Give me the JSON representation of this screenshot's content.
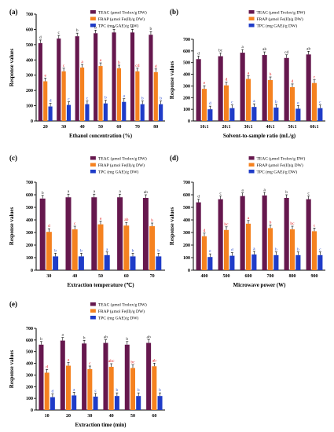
{
  "legend": [
    "TEAC (μmol Trolox/g DW)",
    "FRAP (μmol Fe(II)/g DW)",
    "TPC (mg GAE)/g DW)"
  ],
  "colors": {
    "teac": "#66184e",
    "frap": "#f58220",
    "tpc": "#1f3cc8",
    "letter_black": "#222222",
    "letter_red": "#e02020",
    "letter_blue": "#2a4bd0"
  },
  "chart_data": [
    {
      "panel": "(a)",
      "type": "bar",
      "xlabel": "Ethanol concentration (%)",
      "ylabel": "Response values",
      "ylim": [
        0,
        700
      ],
      "yticks": [
        0,
        100,
        200,
        300,
        400,
        500,
        600,
        700
      ],
      "categories": [
        "20",
        "30",
        "40",
        "50",
        "60",
        "70",
        "80"
      ],
      "series": [
        {
          "name": "TEAC (μmol Trolox/g DW)",
          "values": [
            510,
            540,
            555,
            575,
            580,
            580,
            565
          ],
          "letters": [
            "d",
            "c",
            "b",
            "b",
            "a",
            "a",
            "b"
          ]
        },
        {
          "name": "FRAP (μmol Fe(II)/g DW)",
          "values": [
            260,
            325,
            350,
            360,
            345,
            325,
            320
          ],
          "letters": [
            "e",
            "c",
            "a",
            "a",
            "b",
            "cd",
            "d"
          ]
        },
        {
          "name": "TPC (mg GAE)/g DW)",
          "values": [
            95,
            105,
            110,
            115,
            125,
            110,
            110
          ],
          "letters": [
            "d",
            "c",
            "c",
            "b",
            "a",
            "b",
            "b"
          ]
        }
      ]
    },
    {
      "panel": "(b)",
      "type": "bar",
      "xlabel": "Solvent-to-sample ratio (mL/g)",
      "ylabel": "Response values",
      "ylim": [
        0,
        700
      ],
      "yticks": [
        0,
        100,
        200,
        300,
        400,
        500,
        600,
        700
      ],
      "categories": [
        "10:1",
        "20:1",
        "30:1",
        "40:1",
        "50:1",
        "60:1"
      ],
      "series": [
        {
          "name": "TEAC (μmol Trolox/g DW)",
          "values": [
            530,
            555,
            585,
            565,
            540,
            570
          ],
          "letters": [
            "d",
            "bc",
            "a",
            "ab",
            "cd",
            "ab"
          ]
        },
        {
          "name": "FRAP (μmol Fe(II)/g DW)",
          "values": [
            275,
            305,
            360,
            350,
            290,
            325
          ],
          "letters": [
            "e",
            "d",
            "a",
            "b",
            "d",
            "c"
          ]
        },
        {
          "name": "TPC (mg GAE)/g DW)",
          "values": [
            100,
            110,
            120,
            115,
            105,
            110
          ],
          "letters": [
            "d",
            "c",
            "a",
            "b",
            "e",
            "c"
          ]
        }
      ]
    },
    {
      "panel": "(c)",
      "type": "bar",
      "xlabel": "Extraction temperature (℃)",
      "ylabel": "Response values",
      "ylim": [
        0,
        700
      ],
      "yticks": [
        0,
        100,
        200,
        300,
        400,
        500,
        600,
        700
      ],
      "categories": [
        "30",
        "40",
        "50",
        "60",
        "70"
      ],
      "series": [
        {
          "name": "TEAC (μmol Trolox/g DW)",
          "values": [
            570,
            580,
            580,
            580,
            575
          ],
          "letters": [
            "b",
            "a",
            "a",
            "a",
            "ab"
          ]
        },
        {
          "name": "FRAP (μmol Fe(II)/g DW)",
          "values": [
            305,
            325,
            365,
            355,
            350
          ],
          "letters": [
            "d",
            "c",
            "a",
            "ab",
            "b"
          ]
        },
        {
          "name": "TPC (mg GAE)/g DW)",
          "values": [
            110,
            110,
            120,
            110,
            110
          ],
          "letters": [
            "b",
            "b",
            "a",
            "b",
            "b"
          ]
        }
      ]
    },
    {
      "panel": "(d)",
      "type": "bar",
      "xlabel": "Microwave power (W)",
      "ylabel": "Response values",
      "ylim": [
        0,
        700
      ],
      "yticks": [
        0,
        100,
        200,
        300,
        400,
        500,
        600,
        700
      ],
      "categories": [
        "400",
        "500",
        "600",
        "700",
        "800",
        "900"
      ],
      "series": [
        {
          "name": "TEAC (μmol Trolox/g DW)",
          "values": [
            540,
            565,
            590,
            595,
            575,
            565
          ],
          "letters": [
            "d",
            "c",
            "a",
            "a",
            "b",
            "c"
          ]
        },
        {
          "name": "FRAP (μmol Fe(II)/g DW)",
          "values": [
            270,
            320,
            370,
            335,
            325,
            310
          ],
          "letters": [
            "d",
            "bc",
            "a",
            "b",
            "bc",
            "c"
          ]
        },
        {
          "name": "TPC (mg GAE)/g DW)",
          "values": [
            105,
            115,
            125,
            120,
            120,
            120
          ],
          "letters": [
            "e",
            "d",
            "a",
            "b",
            "b",
            "c"
          ]
        }
      ]
    },
    {
      "panel": "(e)",
      "type": "bar",
      "xlabel": "Extraction time (min)",
      "ylabel": "Response values",
      "ylim": [
        0,
        700
      ],
      "yticks": [
        0,
        100,
        200,
        300,
        400,
        500,
        600,
        700
      ],
      "categories": [
        "10",
        "20",
        "30",
        "40",
        "50",
        "60"
      ],
      "series": [
        {
          "name": "TEAC (μmol Trolox/g DW)",
          "values": [
            560,
            595,
            570,
            575,
            560,
            575
          ],
          "letters": [
            "b",
            "a",
            "b",
            "ab",
            "b",
            "ab"
          ]
        },
        {
          "name": "FRAP (μmol Fe(II)/g DW)",
          "values": [
            320,
            380,
            350,
            370,
            360,
            375
          ],
          "letters": [
            "d",
            "a",
            "c",
            "abc",
            "bc",
            "ab"
          ]
        },
        {
          "name": "TPC (mg GAE)/g DW)",
          "values": [
            110,
            125,
            115,
            120,
            120,
            120
          ],
          "letters": [
            "d",
            "a",
            "c",
            "b",
            "b",
            "b"
          ]
        }
      ]
    }
  ]
}
